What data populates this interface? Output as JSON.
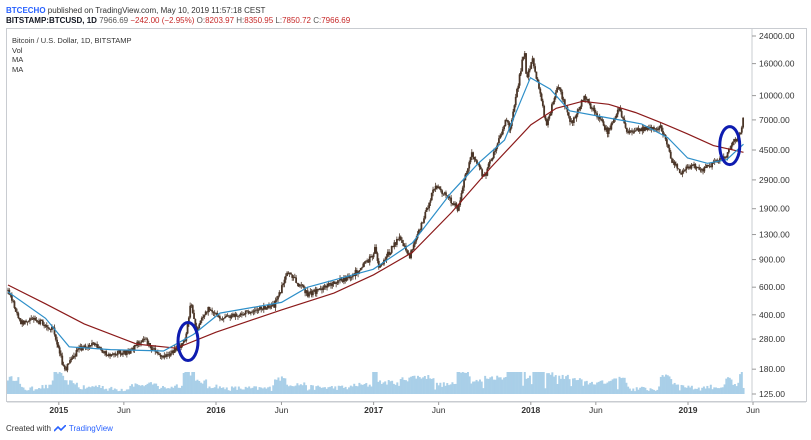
{
  "header": {
    "author": "BTCECHO",
    "published_text": "published on TradingView.com, May 10, 2019 11:57:18 CEST",
    "symbol": "BITSTAMP:BTCUSD, 1D",
    "last_price": "7966.69",
    "change": "−242.00 (−2.95%)",
    "open": "8203.97",
    "high": "8350.95",
    "low": "7850.72",
    "close": "7966.69"
  },
  "legend": {
    "title": "Bitcoin / U.S. Dollar, 1D, BITSTAMP",
    "vol": "Vol",
    "ma1": "MA",
    "ma2": "MA"
  },
  "footer": {
    "created_with": "Created with",
    "brand": "TradingView"
  },
  "colors": {
    "candle": "#4a3527",
    "ma_fast": "#2e8fc9",
    "ma_slow": "#8b1a1a",
    "volume": "#a9cfe8",
    "ellipse": "#0e1cb0",
    "grid": "#eeeeee"
  },
  "chart_data": {
    "type": "candlestick",
    "symbol": "BTCUSD",
    "scale": "log",
    "ylim": [
      125,
      24000
    ],
    "y_ticks": [
      "24000.00",
      "16000.00",
      "10000.00",
      "7000.00",
      "4500.00",
      "2900.00",
      "1900.00",
      "1300.00",
      "900.00",
      "600.00",
      "400.00",
      "280.00",
      "180.00",
      "125.00"
    ],
    "y_tick_values": [
      24000,
      16000,
      10000,
      7000,
      4500,
      2900,
      1900,
      1300,
      900,
      600,
      400,
      280,
      180,
      125
    ],
    "x_range": [
      "2014-09-05",
      "2019-05-25"
    ],
    "x_ticks": [
      {
        "label": "2015",
        "date": "2015-01-01",
        "bold": true
      },
      {
        "label": "Jun",
        "date": "2015-06-01",
        "bold": false
      },
      {
        "label": "2016",
        "date": "2016-01-01",
        "bold": true
      },
      {
        "label": "Jun",
        "date": "2016-06-01",
        "bold": false
      },
      {
        "label": "2017",
        "date": "2017-01-01",
        "bold": true
      },
      {
        "label": "Jun",
        "date": "2017-06-01",
        "bold": false
      },
      {
        "label": "2018",
        "date": "2018-01-01",
        "bold": true
      },
      {
        "label": "Jun",
        "date": "2018-06-01",
        "bold": false
      },
      {
        "label": "2019",
        "date": "2019-01-01",
        "bold": true
      },
      {
        "label": "Jun",
        "date": "2019-06-01",
        "bold": false
      }
    ],
    "price_path": [
      [
        "2014-09-05",
        570
      ],
      [
        "2014-10-05",
        360
      ],
      [
        "2014-11-10",
        370
      ],
      [
        "2014-12-20",
        320
      ],
      [
        "2015-01-14",
        175
      ],
      [
        "2015-02-15",
        240
      ],
      [
        "2015-03-20",
        260
      ],
      [
        "2015-04-20",
        225
      ],
      [
        "2015-06-15",
        232
      ],
      [
        "2015-07-15",
        285
      ],
      [
        "2015-08-25",
        215
      ],
      [
        "2015-09-25",
        235
      ],
      [
        "2015-10-20",
        270
      ],
      [
        "2015-11-04",
        480
      ],
      [
        "2015-11-15",
        320
      ],
      [
        "2015-12-15",
        440
      ],
      [
        "2016-01-15",
        380
      ],
      [
        "2016-03-15",
        415
      ],
      [
        "2016-05-15",
        455
      ],
      [
        "2016-06-17",
        750
      ],
      [
        "2016-08-02",
        540
      ],
      [
        "2016-09-15",
        610
      ],
      [
        "2016-11-15",
        720
      ],
      [
        "2016-12-31",
        960
      ],
      [
        "2017-01-05",
        1120
      ],
      [
        "2017-01-12",
        780
      ],
      [
        "2017-03-03",
        1280
      ],
      [
        "2017-03-25",
        930
      ],
      [
        "2017-05-25",
        2700
      ],
      [
        "2017-07-15",
        1900
      ],
      [
        "2017-08-15",
        4300
      ],
      [
        "2017-09-15",
        3000
      ],
      [
        "2017-11-08",
        7400
      ],
      [
        "2017-11-12",
        5800
      ],
      [
        "2017-12-17",
        19500
      ],
      [
        "2017-12-22",
        13000
      ],
      [
        "2018-01-06",
        17000
      ],
      [
        "2018-02-06",
        6500
      ],
      [
        "2018-03-05",
        11500
      ],
      [
        "2018-04-06",
        6600
      ],
      [
        "2018-05-05",
        9800
      ],
      [
        "2018-06-29",
        5850
      ],
      [
        "2018-07-24",
        8400
      ],
      [
        "2018-08-14",
        5900
      ],
      [
        "2018-10-31",
        6300
      ],
      [
        "2018-11-25",
        3800
      ],
      [
        "2018-12-15",
        3200
      ],
      [
        "2019-01-10",
        3600
      ],
      [
        "2019-02-08",
        3400
      ],
      [
        "2019-03-31",
        4100
      ],
      [
        "2019-04-15",
        5100
      ],
      [
        "2019-05-05",
        5800
      ],
      [
        "2019-05-10",
        7966.69
      ]
    ],
    "ma_fast_path": [
      [
        "2014-09-05",
        560
      ],
      [
        "2014-12-01",
        380
      ],
      [
        "2015-01-25",
        250
      ],
      [
        "2015-05-01",
        240
      ],
      [
        "2015-09-01",
        235
      ],
      [
        "2015-11-10",
        300
      ],
      [
        "2016-01-10",
        410
      ],
      [
        "2016-06-01",
        480
      ],
      [
        "2016-08-01",
        600
      ],
      [
        "2016-12-31",
        780
      ],
      [
        "2017-04-01",
        1150
      ],
      [
        "2017-06-30",
        2400
      ],
      [
        "2017-09-01",
        3700
      ],
      [
        "2017-11-01",
        5200
      ],
      [
        "2017-12-31",
        13000
      ],
      [
        "2018-02-15",
        11000
      ],
      [
        "2018-04-01",
        8000
      ],
      [
        "2018-07-01",
        7200
      ],
      [
        "2018-09-15",
        6600
      ],
      [
        "2018-11-15",
        5400
      ],
      [
        "2018-12-31",
        4000
      ],
      [
        "2019-02-15",
        3700
      ],
      [
        "2019-04-01",
        3900
      ],
      [
        "2019-05-10",
        4900
      ]
    ],
    "ma_slow_path": [
      [
        "2014-09-05",
        620
      ],
      [
        "2014-12-01",
        470
      ],
      [
        "2015-03-01",
        350
      ],
      [
        "2015-07-01",
        260
      ],
      [
        "2015-10-01",
        245
      ],
      [
        "2016-01-01",
        310
      ],
      [
        "2016-06-01",
        430
      ],
      [
        "2016-10-01",
        550
      ],
      [
        "2017-01-01",
        720
      ],
      [
        "2017-04-01",
        1000
      ],
      [
        "2017-07-01",
        1800
      ],
      [
        "2017-10-01",
        3500
      ],
      [
        "2018-01-01",
        6500
      ],
      [
        "2018-03-01",
        8300
      ],
      [
        "2018-05-01",
        9200
      ],
      [
        "2018-07-01",
        8800
      ],
      [
        "2018-09-01",
        7800
      ],
      [
        "2018-11-01",
        6700
      ],
      [
        "2018-12-31",
        5700
      ],
      [
        "2019-03-01",
        4800
      ],
      [
        "2019-05-10",
        4350
      ]
    ],
    "annotations": [
      {
        "type": "ellipse",
        "center_date": "2015-10-28",
        "center_price": 270,
        "label": ""
      },
      {
        "type": "ellipse",
        "center_date": "2019-04-08",
        "center_price": 4800,
        "label": ""
      }
    ]
  }
}
